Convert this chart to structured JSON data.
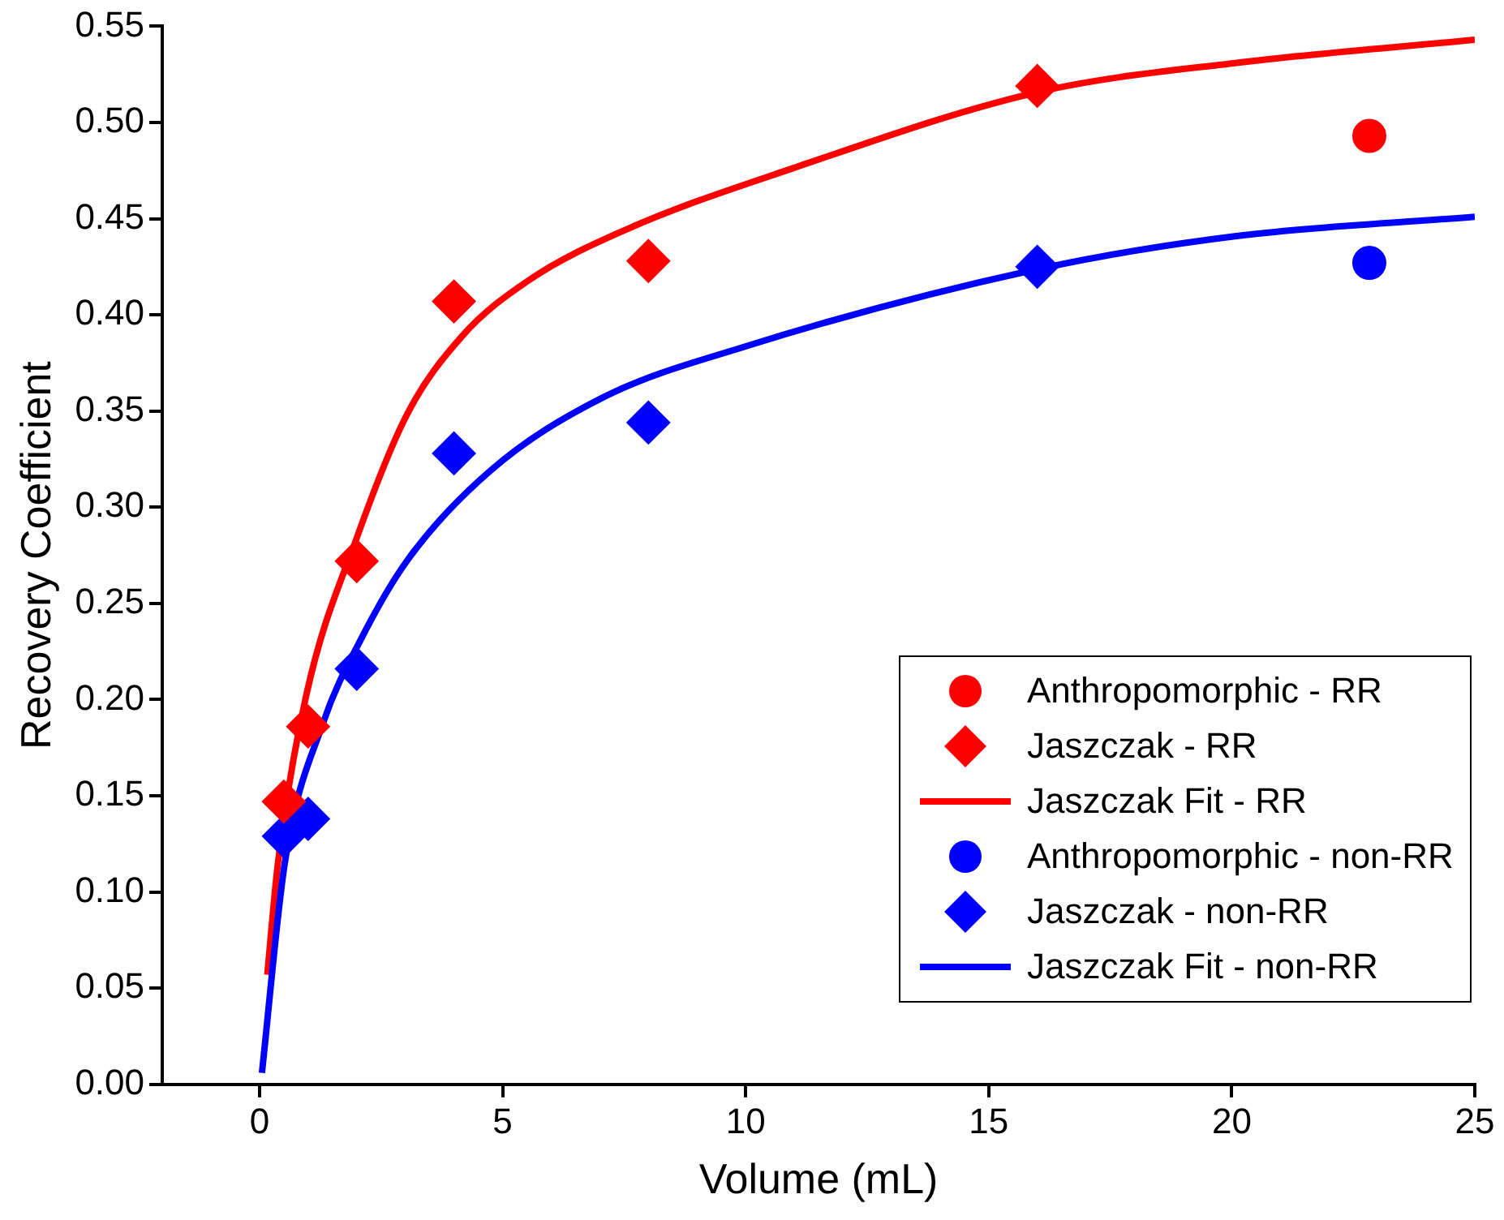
{
  "chart_data": {
    "type": "scatter",
    "xlabel": "Volume (mL)",
    "ylabel": "Recovery Coefficient",
    "xlim": [
      -2,
      25
    ],
    "xticks": [
      0,
      5,
      10,
      15,
      20,
      25
    ],
    "ylim": [
      0,
      0.55
    ],
    "yticks": [
      {
        "value": 0,
        "label": "0.00"
      },
      0.05,
      {
        "value": 0.1,
        "label": "0.10"
      },
      0.15,
      {
        "value": 0.2,
        "label": "0.20"
      },
      0.25,
      {
        "value": 0.3,
        "label": "0.30"
      },
      0.35,
      {
        "value": 0.4,
        "label": "0.40"
      },
      0.45,
      {
        "value": 0.5,
        "label": "0.50"
      },
      0.55
    ],
    "grid": false,
    "legend": "bottom right",
    "series": [
      {
        "name": "Anthropomorphic - RR",
        "type": "scatter",
        "marker": "circle",
        "color": "#ff0000",
        "x": [
          22.83
        ],
        "values": [
          0.493
        ]
      },
      {
        "name": "Jaszczak - RR",
        "type": "scatter",
        "marker": "diamond",
        "color": "#ff0000",
        "x": [
          0.5,
          1,
          2,
          4,
          8,
          16
        ],
        "values": [
          0.147,
          0.186,
          0.272,
          0.407,
          0.428,
          0.519
        ]
      },
      {
        "name": "Jaszczak Fit - RR",
        "type": "line",
        "marker": "none",
        "line_style": "solid",
        "color": "#ff0000",
        "x": [
          0.16,
          0.38,
          0.96,
          2,
          3.03,
          4.17,
          5.54,
          7.51,
          10.95,
          16.05,
          20.1,
          25
        ],
        "values": [
          0.057,
          0.115,
          0.202,
          0.284,
          0.348,
          0.389,
          0.418,
          0.444,
          0.476,
          0.516,
          0.531,
          0.543
        ]
      },
      {
        "name": "Anthropomorphic - non-RR",
        "type": "scatter",
        "marker": "circle",
        "color": "#0000ff",
        "x": [
          22.83
        ],
        "values": [
          0.427
        ]
      },
      {
        "name": "Jaszczak - non-RR",
        "type": "scatter",
        "marker": "diamond",
        "color": "#0000ff",
        "x": [
          0.5,
          1,
          2,
          4,
          8,
          16
        ],
        "values": [
          0.129,
          0.138,
          0.216,
          0.328,
          0.344,
          0.425
        ]
      },
      {
        "name": "Jaszczak Fit - non-RR",
        "type": "line",
        "marker": "none",
        "line_style": "solid",
        "color": "#0000ff",
        "x": [
          0.05,
          0.52,
          1.31,
          2.1,
          3.03,
          4.75,
          7.06,
          9.92,
          16.05,
          20.1,
          25
        ],
        "values": [
          0.006,
          0.115,
          0.188,
          0.232,
          0.272,
          0.319,
          0.357,
          0.383,
          0.424,
          0.441,
          0.451
        ]
      }
    ]
  }
}
